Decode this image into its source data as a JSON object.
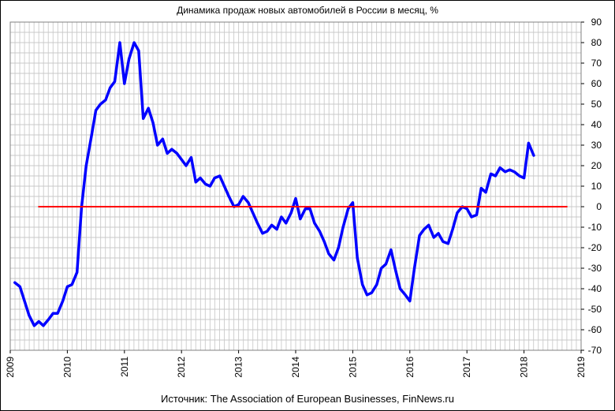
{
  "chart_data": {
    "type": "line",
    "title": "Динамика продаж новых автомобилей в России в месяц, %",
    "xlabel": "",
    "ylabel": "",
    "xlim": [
      2009.0,
      2019.0
    ],
    "ylim": [
      -70,
      90
    ],
    "x_ticks": [
      "2009",
      "2010",
      "2011",
      "2012",
      "2013",
      "2014",
      "2015",
      "2016",
      "2017",
      "2018",
      "2019"
    ],
    "y_ticks": [
      90,
      80,
      70,
      60,
      50,
      40,
      30,
      20,
      10,
      0,
      -10,
      -20,
      -30,
      -40,
      -50,
      -60,
      -70
    ],
    "grid": true,
    "series": [
      {
        "color": "#0000ff",
        "x": [
          2009.08,
          2009.17,
          2009.25,
          2009.33,
          2009.42,
          2009.5,
          2009.58,
          2009.67,
          2009.75,
          2009.83,
          2009.92,
          2010.0,
          2010.08,
          2010.17,
          2010.25,
          2010.33,
          2010.42,
          2010.5,
          2010.58,
          2010.67,
          2010.75,
          2010.83,
          2010.92,
          2011.0,
          2011.08,
          2011.17,
          2011.25,
          2011.33,
          2011.42,
          2011.5,
          2011.58,
          2011.67,
          2011.75,
          2011.83,
          2011.92,
          2012.0,
          2012.08,
          2012.17,
          2012.25,
          2012.33,
          2012.42,
          2012.5,
          2012.58,
          2012.67,
          2012.75,
          2012.83,
          2012.92,
          2013.0,
          2013.08,
          2013.17,
          2013.25,
          2013.33,
          2013.42,
          2013.5,
          2013.58,
          2013.67,
          2013.75,
          2013.83,
          2013.92,
          2014.0,
          2014.08,
          2014.17,
          2014.25,
          2014.33,
          2014.42,
          2014.5,
          2014.58,
          2014.67,
          2014.75,
          2014.83,
          2014.92,
          2015.0,
          2015.08,
          2015.17,
          2015.25,
          2015.33,
          2015.42,
          2015.5,
          2015.58,
          2015.67,
          2015.75,
          2015.83,
          2015.92,
          2016.0,
          2016.08,
          2016.17,
          2016.25,
          2016.33,
          2016.42,
          2016.5,
          2016.58,
          2016.67,
          2016.75,
          2016.83,
          2016.92,
          2017.0,
          2017.08,
          2017.17,
          2017.25,
          2017.33,
          2017.42,
          2017.5,
          2017.58,
          2017.67,
          2017.75,
          2017.83,
          2017.92,
          2018.0,
          2018.08,
          2018.17
        ],
        "values": [
          -37,
          -39,
          -46,
          -53,
          -58,
          -56,
          -58,
          -55,
          -52,
          -52,
          -46,
          -39,
          -38,
          -32,
          0,
          20,
          34,
          47,
          50,
          52,
          58,
          61,
          80,
          60,
          72,
          80,
          76,
          43,
          48,
          41,
          30,
          33,
          26,
          28,
          26,
          23,
          20,
          24,
          12,
          14,
          11,
          10,
          14,
          15,
          10,
          5,
          0,
          1,
          5,
          2,
          -3,
          -8,
          -13,
          -12,
          -9,
          -11,
          -5,
          -8,
          -3,
          4,
          -6,
          -1,
          -1,
          -8,
          -12,
          -17,
          -23,
          -26,
          -20,
          -10,
          -1,
          2,
          -25,
          -38,
          -43,
          -42,
          -38,
          -30,
          -28,
          -21,
          -31,
          -40,
          -43,
          -46,
          -30,
          -14,
          -11,
          -9,
          -15,
          -13,
          -17,
          -18,
          -11,
          -3,
          0,
          -1,
          -5,
          -4,
          9,
          7,
          16,
          15,
          19,
          17,
          18,
          17,
          15,
          14,
          31,
          25
        ]
      },
      {
        "color": "#ff0000",
        "x": [
          2009.5,
          2018.75
        ],
        "values": [
          0,
          0
        ]
      }
    ]
  },
  "source_note": "Источник: The Association of European Businesses, FinNews.ru"
}
